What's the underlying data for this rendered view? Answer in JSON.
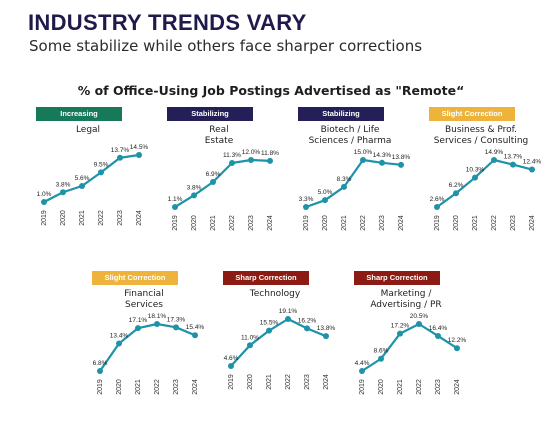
{
  "header": {
    "title": "INDUSTRY TRENDS VARY",
    "subtitle": "Some stabilize while others face sharper corrections"
  },
  "colors": {
    "line": "#1d93a8",
    "badge_increasing": "#15795a",
    "badge_stabilizing": "#242057",
    "badge_slight": "#edb33a",
    "badge_sharp": "#8c1c13"
  },
  "chart_data": {
    "type": "line",
    "title": "% of Office-Using Job Postings Advertised as \"Remote“",
    "x": [
      "2019",
      "2020",
      "2021",
      "2022",
      "2023",
      "2024"
    ],
    "panels": [
      {
        "name": "Legal",
        "trend": "Increasing",
        "values": [
          1.0,
          3.8,
          5.6,
          9.5,
          13.7,
          14.5
        ],
        "labels": [
          "1.0%",
          "3.8%",
          "5.6%",
          "9.5%",
          "13.7%",
          "14.5%"
        ]
      },
      {
        "name": "Real\nEstate",
        "trend": "Stabilizing",
        "values": [
          1.1,
          3.8,
          6.9,
          11.3,
          12.0,
          11.8
        ],
        "labels": [
          "1.1%",
          "3.8%",
          "6.9%",
          "11.3%",
          "12.0%",
          "11.8%"
        ]
      },
      {
        "name": "Biotech / Life\nSciences / Pharma",
        "trend": "Stabilizing",
        "values": [
          3.3,
          5.0,
          8.3,
          15.0,
          14.3,
          13.8
        ],
        "labels": [
          "3.3%",
          "5.0%",
          "8.3%",
          "15.0%",
          "14.3%",
          "13.8%"
        ]
      },
      {
        "name": "Business & Prof.\nServices / Consulting",
        "trend": "Slight Correction",
        "values": [
          2.6,
          6.2,
          10.3,
          14.9,
          13.7,
          12.4
        ],
        "labels": [
          "2.6%",
          "6.2%",
          "10.3%",
          "14.9%",
          "13.7%",
          "12.4%"
        ]
      },
      {
        "name": "Financial\nServices",
        "trend": "Slight Correction",
        "values": [
          6.8,
          13.4,
          17.1,
          18.1,
          17.3,
          15.4
        ],
        "labels": [
          "6.8%",
          "13.4%",
          "17.1%",
          "18.1%",
          "17.3%",
          "15.4%"
        ]
      },
      {
        "name": "Technology",
        "trend": "Sharp Correction",
        "values": [
          4.6,
          11.0,
          15.5,
          19.1,
          16.2,
          13.8
        ],
        "labels": [
          "4.6%",
          "11.0%",
          "15.5%",
          "19.1%",
          "16.2%",
          "13.8%"
        ]
      },
      {
        "name": "Marketing /\nAdvertising / PR",
        "trend": "Sharp Correction",
        "values": [
          4.4,
          8.6,
          17.2,
          20.5,
          16.4,
          12.2
        ],
        "labels": [
          "4.4%",
          "8.6%",
          "17.2%",
          "20.5%",
          "16.4%",
          "12.2%"
        ]
      }
    ]
  }
}
